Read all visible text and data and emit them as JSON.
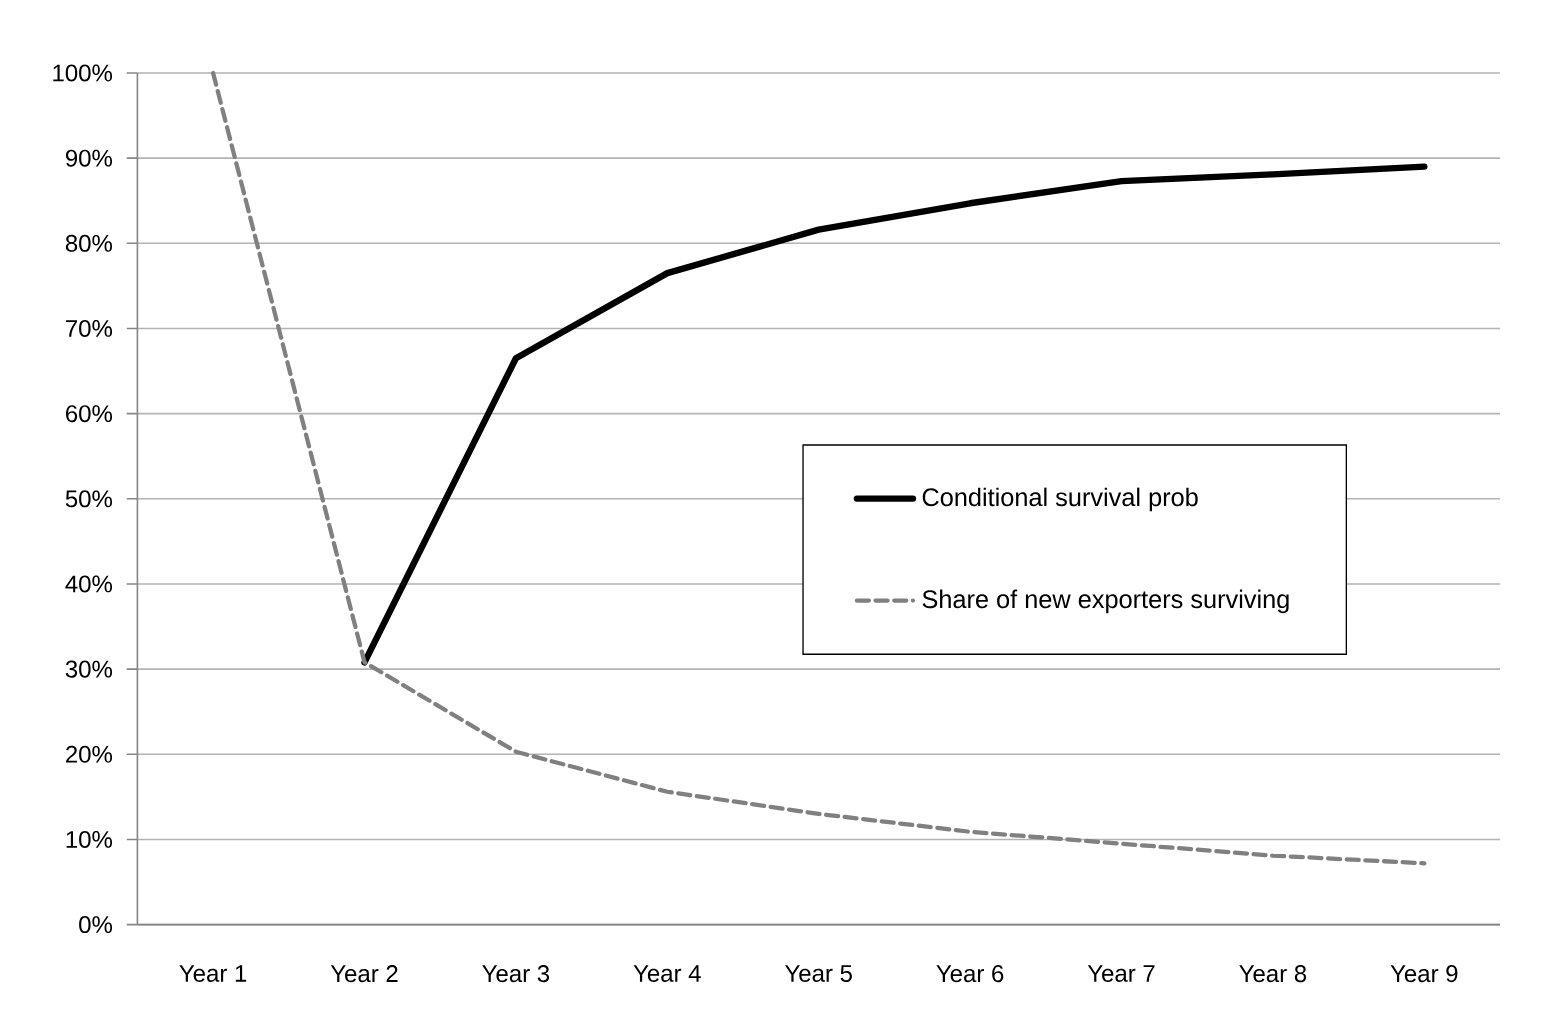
{
  "chart_data": {
    "type": "line",
    "categories": [
      "Year 1",
      "Year 2",
      "Year 3",
      "Year 4",
      "Year 5",
      "Year 6",
      "Year 7",
      "Year 8",
      "Year 9"
    ],
    "series": [
      {
        "name": "Conditional survival prob",
        "color": "#000000",
        "line_style": "solid",
        "values": [
          null,
          30.8,
          66.5,
          76.5,
          81.6,
          84.7,
          87.3,
          88.1,
          89.0
        ]
      },
      {
        "name": "Share of new exporters surviving",
        "color": "#808080",
        "line_style": "dashed",
        "values": [
          100,
          30.8,
          20.3,
          15.6,
          13.0,
          10.9,
          9.5,
          8.1,
          7.2
        ]
      }
    ],
    "ylim": [
      0,
      100
    ],
    "yticks": [
      {
        "value": 0,
        "label": "0%"
      },
      {
        "value": 10,
        "label": "10%"
      },
      {
        "value": 20,
        "label": "20%"
      },
      {
        "value": 30,
        "label": "30%"
      },
      {
        "value": 40,
        "label": "40%"
      },
      {
        "value": 50,
        "label": "50%"
      },
      {
        "value": 60,
        "label": "60%"
      },
      {
        "value": 70,
        "label": "70%"
      },
      {
        "value": 80,
        "label": "80%"
      },
      {
        "value": 90,
        "label": "90%"
      },
      {
        "value": 100,
        "label": "100%"
      }
    ],
    "grid": "y",
    "legend": "right"
  }
}
